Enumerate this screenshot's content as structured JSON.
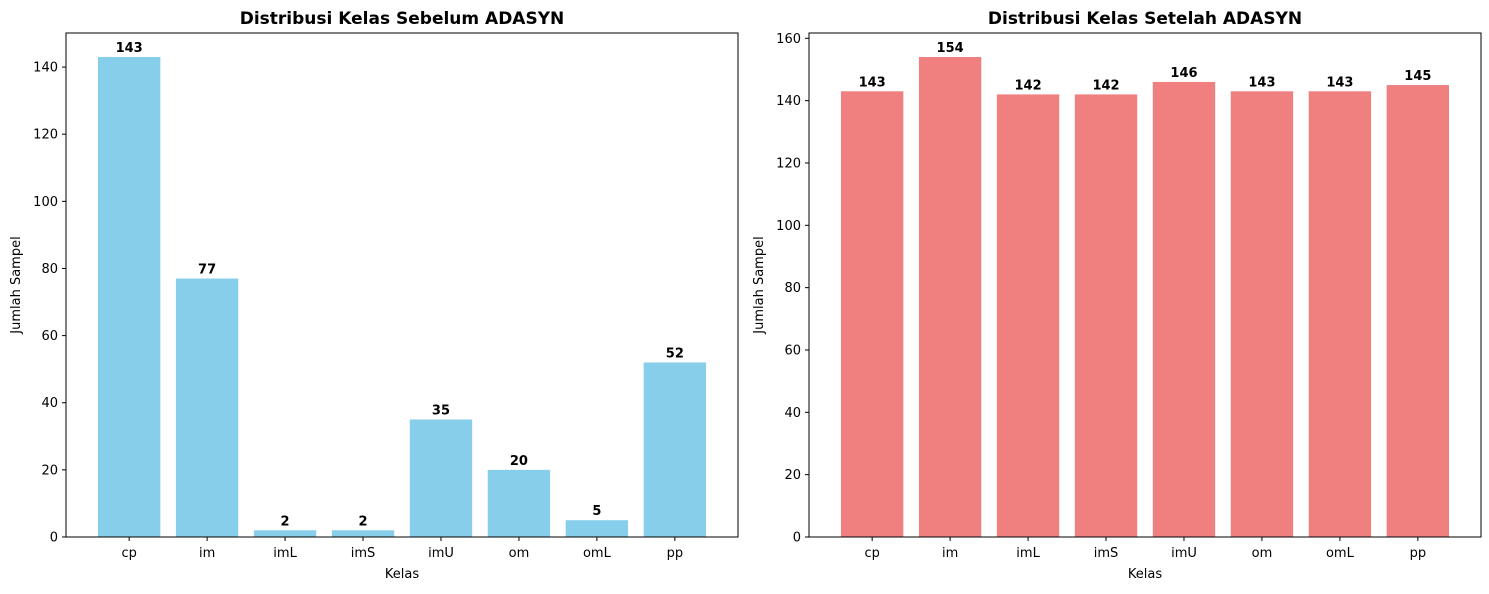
{
  "chart_data": [
    {
      "type": "bar",
      "title": "Distribusi Kelas Sebelum ADASYN",
      "xlabel": "Kelas",
      "ylabel": "Jumlah Sampel",
      "categories": [
        "cp",
        "im",
        "imL",
        "imS",
        "imU",
        "om",
        "omL",
        "pp"
      ],
      "values": [
        143,
        77,
        2,
        2,
        35,
        20,
        5,
        52
      ],
      "ylim": [
        0,
        150.15
      ],
      "yticks": [
        0,
        20,
        40,
        60,
        80,
        100,
        120,
        140
      ],
      "color": "#87ceeb",
      "grid": false
    },
    {
      "type": "bar",
      "title": "Distribusi Kelas Setelah ADASYN",
      "xlabel": "Kelas",
      "ylabel": "Jumlah Sampel",
      "categories": [
        "cp",
        "im",
        "imL",
        "imS",
        "imU",
        "om",
        "omL",
        "pp"
      ],
      "values": [
        143,
        154,
        142,
        142,
        146,
        143,
        143,
        145
      ],
      "ylim": [
        0,
        161.7
      ],
      "yticks": [
        0,
        20,
        40,
        60,
        80,
        100,
        120,
        140,
        160
      ],
      "color": "#f08080",
      "grid": false
    }
  ]
}
